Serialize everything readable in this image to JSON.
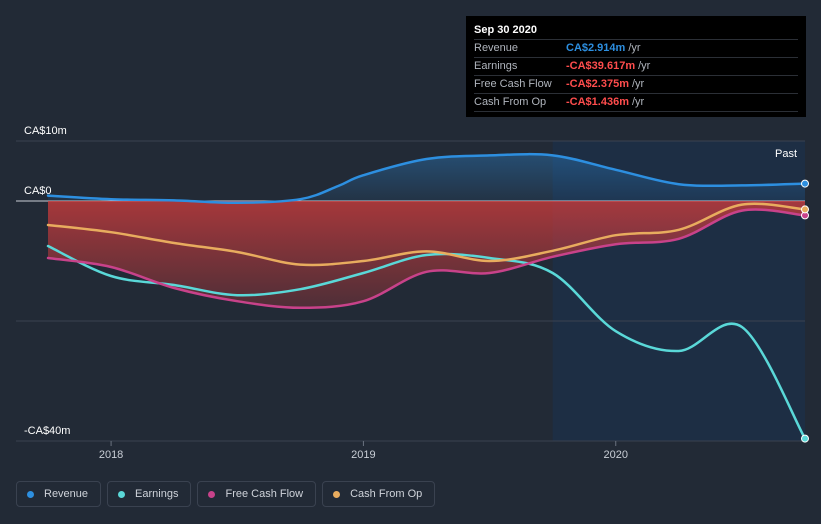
{
  "tooltip": {
    "date": "Sep 30 2020",
    "rows": [
      {
        "label": "Revenue",
        "value": "CA$2.914m",
        "unit": "/yr",
        "color": "#2d8fe0"
      },
      {
        "label": "Earnings",
        "value": "-CA$39.617m",
        "unit": "/yr",
        "color": "#ff4d4d"
      },
      {
        "label": "Free Cash Flow",
        "value": "-CA$2.375m",
        "unit": "/yr",
        "color": "#ff4d4d"
      },
      {
        "label": "Cash From Op",
        "value": "-CA$1.436m",
        "unit": "/yr",
        "color": "#ff4d4d"
      }
    ]
  },
  "legend": [
    {
      "label": "Revenue",
      "color": "#2d8fe0"
    },
    {
      "label": "Earnings",
      "color": "#5ad8d8"
    },
    {
      "label": "Free Cash Flow",
      "color": "#c8428a"
    },
    {
      "label": "Cash From Op",
      "color": "#e8ac5e"
    }
  ],
  "chart_data": {
    "type": "line",
    "title": "",
    "xlabel": "",
    "ylabel": "",
    "ylim": [
      -40,
      10
    ],
    "xlim": [
      2017.75,
      2020.75
    ],
    "yticks": [
      {
        "value": 10,
        "label": "CA$10m"
      },
      {
        "value": 0,
        "label": "CA$0"
      },
      {
        "value": -40,
        "label": "-CA$40m"
      }
    ],
    "xticks": [
      {
        "value": 2018,
        "label": "2018"
      },
      {
        "value": 2019,
        "label": "2019"
      },
      {
        "value": 2020,
        "label": "2020"
      }
    ],
    "past_label": "Past",
    "highlight_start": 2019.75,
    "series": [
      {
        "name": "Revenue",
        "color": "#2d8fe0",
        "x": [
          2017.75,
          2018.0,
          2018.25,
          2018.5,
          2018.75,
          2018.9,
          2019.0,
          2019.25,
          2019.5,
          2019.75,
          2020.0,
          2020.25,
          2020.5,
          2020.75
        ],
        "y": [
          0.9,
          0.3,
          0.1,
          -0.3,
          0.3,
          2.5,
          4.3,
          7.0,
          7.6,
          7.6,
          5.2,
          2.8,
          2.6,
          2.9
        ]
      },
      {
        "name": "Earnings",
        "color": "#5ad8d8",
        "x": [
          2017.75,
          2018.0,
          2018.25,
          2018.5,
          2018.75,
          2019.0,
          2019.25,
          2019.5,
          2019.75,
          2020.0,
          2020.25,
          2020.5,
          2020.75
        ],
        "y": [
          -7.5,
          -12.5,
          -14.0,
          -15.7,
          -14.7,
          -12.0,
          -9.0,
          -9.5,
          -12.0,
          -21.7,
          -25.0,
          -21.0,
          -39.6
        ]
      },
      {
        "name": "Free Cash Flow",
        "color": "#c8428a",
        "x": [
          2017.75,
          2018.0,
          2018.25,
          2018.5,
          2018.75,
          2019.0,
          2019.25,
          2019.5,
          2019.75,
          2020.0,
          2020.25,
          2020.5,
          2020.75
        ],
        "y": [
          -9.5,
          -11.0,
          -14.5,
          -16.7,
          -17.8,
          -16.7,
          -11.8,
          -12.0,
          -9.3,
          -7.2,
          -6.3,
          -1.6,
          -2.4
        ]
      },
      {
        "name": "Cash From Op",
        "color": "#e8ac5e",
        "x": [
          2017.75,
          2018.0,
          2018.25,
          2018.5,
          2018.75,
          2019.0,
          2019.25,
          2019.5,
          2019.75,
          2020.0,
          2020.25,
          2020.5,
          2020.75
        ],
        "y": [
          -4.0,
          -5.2,
          -7.0,
          -8.5,
          -10.6,
          -10.0,
          -8.4,
          -10.0,
          -8.3,
          -5.7,
          -4.8,
          -0.6,
          -1.4
        ]
      }
    ]
  }
}
